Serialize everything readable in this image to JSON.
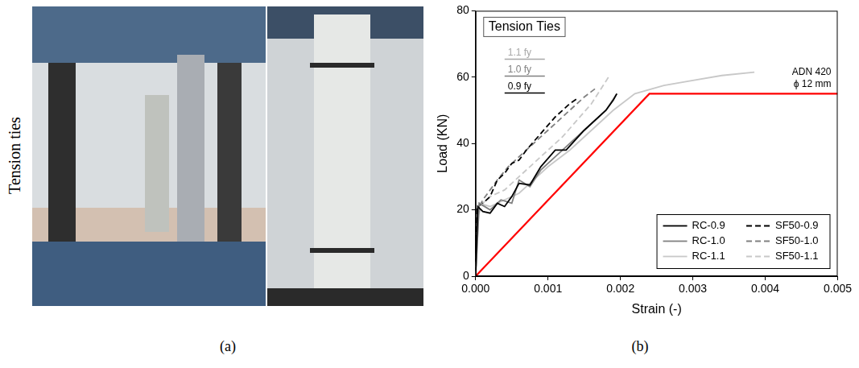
{
  "panels": {
    "a": {
      "label": "(a)",
      "side_label": "Tension ties"
    },
    "b": {
      "label": "(b)"
    }
  },
  "chart_data": {
    "type": "line",
    "title": "Tension Ties",
    "x_label": "Strain (-)",
    "y_label": "Load (KN)",
    "xlim": [
      0,
      0.005
    ],
    "ylim": [
      0,
      80
    ],
    "xticks": [
      {
        "value": 0,
        "label": "0.000"
      },
      0.001,
      0.002,
      0.003,
      0.004,
      0.005
    ],
    "yticks": [
      0,
      20,
      40,
      60,
      80
    ],
    "grid": false,
    "legend": "bottom-right",
    "series": [
      {
        "name": "RC-0.9",
        "color": "#000000",
        "line_style": "solid",
        "x": [
          0,
          3e-05,
          0.0001,
          0.0002,
          0.0003,
          0.0004,
          0.0005,
          0.0006,
          0.00075,
          0.0009,
          0.0011,
          0.00125,
          0.0015,
          0.0018,
          0.0019,
          0.00195
        ],
        "values": [
          0,
          21,
          19.5,
          19,
          22,
          21,
          24,
          28,
          27.5,
          33,
          38,
          38,
          44,
          50,
          53,
          55
        ]
      },
      {
        "name": "RC-1.0",
        "color": "#808080",
        "line_style": "solid",
        "x": [
          0,
          5e-05,
          0.0002,
          0.00035,
          0.0005,
          0.0006,
          0.00075,
          0.0009,
          0.0012,
          0.0015,
          0.0018,
          0.00195
        ],
        "values": [
          0,
          22,
          20,
          23,
          22,
          29,
          27,
          32,
          38,
          44,
          50,
          55
        ]
      },
      {
        "name": "RC-1.1",
        "color": "#c8c8c8",
        "line_style": "solid",
        "x": [
          0,
          5e-05,
          0.0002,
          0.0004,
          0.0006,
          0.00075,
          0.001,
          0.0013,
          0.0016,
          0.0019,
          0.0022,
          0.0026,
          0.003,
          0.0034,
          0.00385
        ],
        "values": [
          0,
          22,
          21,
          23,
          25,
          28,
          33,
          38,
          44,
          50,
          55,
          57.5,
          59,
          60.5,
          61.5
        ]
      },
      {
        "name": "SF50-0.9",
        "color": "#000000",
        "line_style": "dashed",
        "x": [
          0,
          2e-05,
          0.0001,
          0.0002,
          0.0003,
          0.0004,
          0.0005,
          0.0006,
          0.0007,
          0.0009,
          0.0011,
          0.0013,
          0.0014
        ],
        "values": [
          0,
          21,
          22,
          24,
          29,
          31,
          34,
          35,
          38,
          43,
          48,
          52,
          53.5
        ]
      },
      {
        "name": "SF50-1.0",
        "color": "#808080",
        "line_style": "dashed",
        "x": [
          0,
          3e-05,
          0.0001,
          0.0002,
          0.0003,
          0.00045,
          0.00055,
          0.0007,
          0.0009,
          0.0011,
          0.0013,
          0.0015,
          0.00165
        ],
        "values": [
          0,
          20,
          23,
          26,
          29,
          33,
          35,
          38,
          42,
          46,
          50,
          54,
          56.5
        ]
      },
      {
        "name": "SF50-1.1",
        "color": "#c8c8c8",
        "line_style": "dashed",
        "x": [
          0,
          3e-05,
          0.0001,
          0.0002,
          0.0004,
          0.0006,
          0.0008,
          0.001,
          0.0012,
          0.0014,
          0.0016,
          0.00185
        ],
        "values": [
          0,
          18,
          22,
          24,
          26,
          30,
          34,
          38,
          42,
          47,
          52,
          60.5
        ]
      }
    ],
    "reference_line": {
      "labels": [
        "ADN 420",
        "ϕ 12 mm"
      ],
      "color": "#ff0000",
      "line_style": "solid",
      "x": [
        0,
        0.0024,
        0.005
      ],
      "values": [
        0,
        55,
        55
      ]
    },
    "fy_key": [
      {
        "text": "1.1 fy",
        "color": "#a8a8a8"
      },
      {
        "text": "1.0 fy",
        "color": "#808080"
      },
      {
        "text": "0.9 fy",
        "color": "#000000"
      }
    ]
  }
}
